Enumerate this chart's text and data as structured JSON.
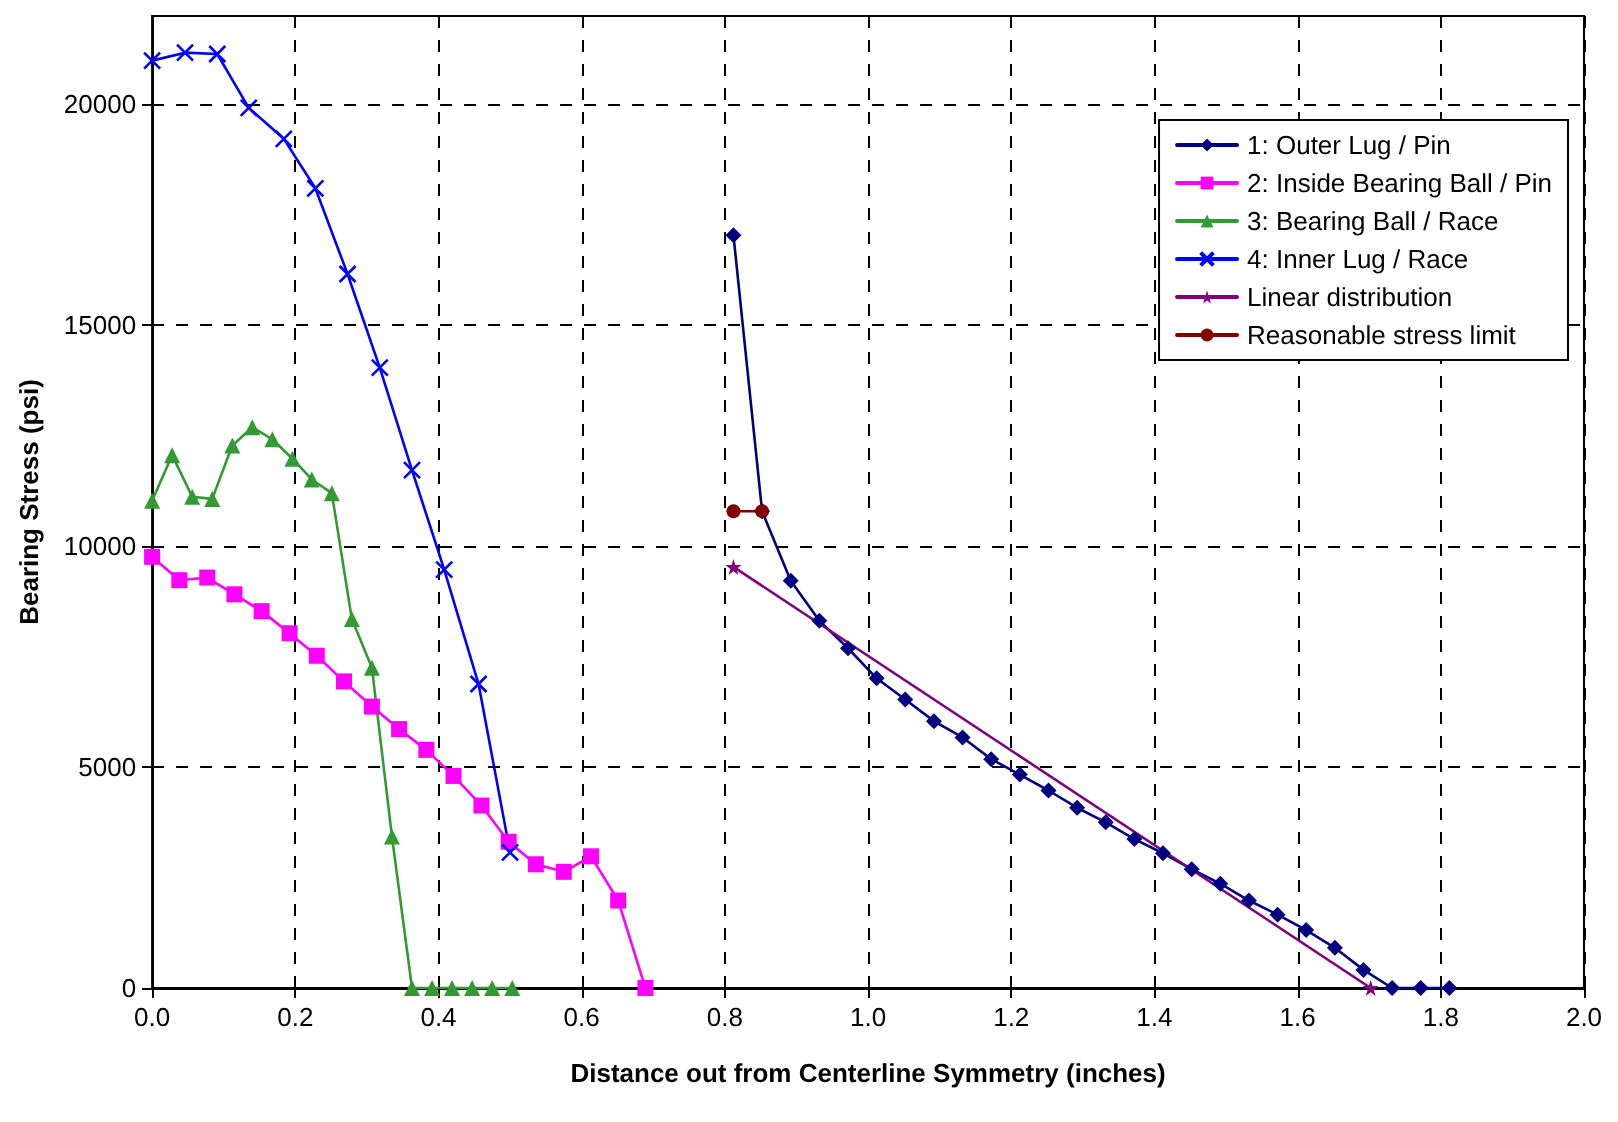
{
  "chart_data": {
    "type": "line",
    "xlabel": "Distance out from Centerline Symmetry (inches)",
    "ylabel": "Bearing Stress (psi)",
    "xlim": [
      0,
      2
    ],
    "xticks": [
      {
        "value": 0,
        "label": "0.0"
      },
      {
        "value": 0.2,
        "label": "0.2"
      },
      {
        "value": 0.4,
        "label": "0.4"
      },
      {
        "value": 0.6,
        "label": "0.6"
      },
      {
        "value": 0.8,
        "label": "0.8"
      },
      {
        "value": 1,
        "label": "1.0"
      },
      {
        "value": 1.2,
        "label": "1.2"
      },
      {
        "value": 1.4,
        "label": "1.4"
      },
      {
        "value": 1.6,
        "label": "1.6"
      },
      {
        "value": 1.8,
        "label": "1.8"
      },
      {
        "value": 2,
        "label": "2.0"
      }
    ],
    "ylim": [
      0,
      22000
    ],
    "yticks": [
      0,
      5000,
      10000,
      15000,
      20000
    ],
    "grid": true,
    "legend": "top right",
    "line_style": "solid",
    "series": [
      {
        "name": "1: Outer Lug / Pin",
        "color": "#000080",
        "marker": "diamond",
        "x": [
          0.812,
          0.852,
          0.892,
          0.932,
          0.972,
          1.012,
          1.052,
          1.092,
          1.132,
          1.172,
          1.212,
          1.252,
          1.292,
          1.332,
          1.372,
          1.412,
          1.452,
          1.492,
          1.532,
          1.572,
          1.612,
          1.652,
          1.692,
          1.732,
          1.772,
          1.812
        ],
        "values": [
          17040,
          10790,
          9220,
          8310,
          7690,
          7010,
          6530,
          6040,
          5670,
          5180,
          4830,
          4470,
          4080,
          3750,
          3370,
          3050,
          2690,
          2360,
          1980,
          1660,
          1310,
          910,
          410,
          0,
          0,
          0
        ]
      },
      {
        "name": "2: Inside Bearing Ball / Pin",
        "color": "#ff00ff",
        "marker": "square",
        "x": [
          0,
          0.038,
          0.077,
          0.115,
          0.153,
          0.192,
          0.23,
          0.268,
          0.307,
          0.345,
          0.383,
          0.421,
          0.46,
          0.498,
          0.536,
          0.575,
          0.613,
          0.651,
          0.689
        ],
        "values": [
          9760,
          9230,
          9290,
          8910,
          8530,
          8030,
          7520,
          6940,
          6370,
          5860,
          5390,
          4800,
          4130,
          3310,
          2800,
          2630,
          2980,
          1980,
          0
        ]
      },
      {
        "name": "3: Bearing Ball / Race",
        "color": "#339933",
        "marker": "triangle",
        "x": [
          0,
          0.028,
          0.056,
          0.084,
          0.112,
          0.14,
          0.168,
          0.196,
          0.223,
          0.251,
          0.279,
          0.307,
          0.335,
          0.363,
          0.391,
          0.419,
          0.447,
          0.475,
          0.503
        ],
        "values": [
          11030,
          12060,
          11120,
          11070,
          12280,
          12690,
          12420,
          11980,
          11510,
          11200,
          8350,
          7250,
          3430,
          0,
          0,
          0,
          0,
          0,
          0
        ]
      },
      {
        "name": "4: Inner Lug / Race",
        "color": "#0000ff",
        "marker": "cross",
        "x": [
          0,
          0.046,
          0.091,
          0.135,
          0.184,
          0.228,
          0.273,
          0.318,
          0.363,
          0.408,
          0.456,
          0.5
        ],
        "values": [
          20990,
          21170,
          21140,
          19920,
          19220,
          18100,
          16160,
          14040,
          11720,
          9470,
          6880,
          3070
        ]
      },
      {
        "name": "Linear distribution",
        "color": "#800080",
        "marker": "star",
        "x": [
          0.812,
          1.702
        ],
        "values": [
          9530,
          0
        ]
      },
      {
        "name": "Reasonable stress limit",
        "color": "#800000",
        "marker": "circle",
        "x": [
          0.812,
          0.852
        ],
        "values": [
          10790,
          10790
        ]
      }
    ]
  }
}
